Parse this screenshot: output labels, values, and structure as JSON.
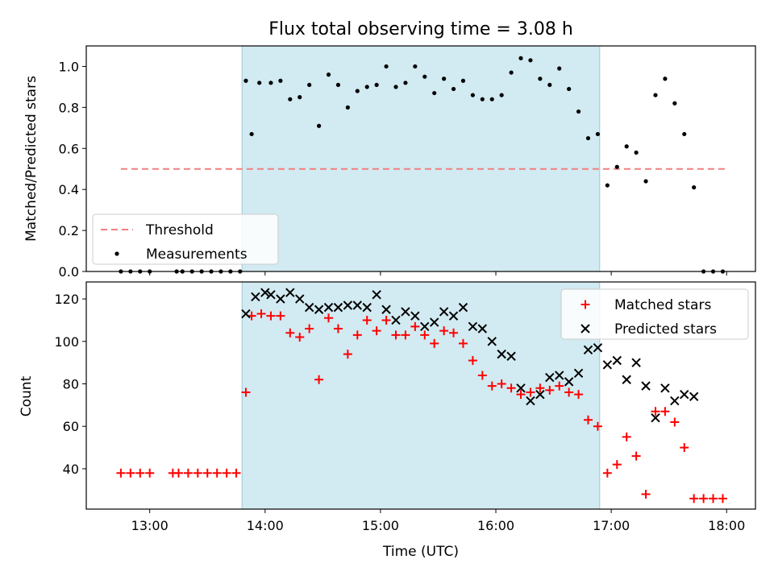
{
  "chart_data": [
    {
      "type": "scatter",
      "title": "Flux total observing time = 3.08 h",
      "xlabel": "",
      "ylabel": "Matched/Predicted stars",
      "xlim": [
        "12:27",
        "18:15"
      ],
      "ylim": [
        0,
        1.1
      ],
      "yticks": [
        "0.0",
        "0.2",
        "0.4",
        "0.6",
        "0.8",
        "1.0"
      ],
      "shaded_interval": [
        "13:48",
        "16:54"
      ],
      "shade_color": "#add8e6",
      "threshold": {
        "name": "Threshold",
        "value": 0.5,
        "from": "12:45",
        "to": "18:00",
        "color": "#f08080"
      },
      "legend": {
        "placement": "lower-left",
        "entries": [
          "Threshold",
          "Measurements"
        ]
      },
      "series": [
        {
          "name": "Measurements",
          "color": "#000000",
          "marker": "dot",
          "x": [
            "12:45",
            "12:50",
            "12:55",
            "13:00",
            "13:14",
            "13:17",
            "13:22",
            "13:27",
            "13:32",
            "13:37",
            "13:42",
            "13:47",
            "13:53",
            "13:50",
            "13:57",
            "14:03",
            "14:08",
            "14:13",
            "14:18",
            "14:23",
            "14:28",
            "14:33",
            "14:38",
            "14:43",
            "14:48",
            "14:53",
            "14:58",
            "15:03",
            "15:08",
            "15:13",
            "15:18",
            "15:23",
            "15:28",
            "15:33",
            "15:38",
            "15:43",
            "15:48",
            "15:53",
            "15:58",
            "16:03",
            "16:08",
            "16:13",
            "16:18",
            "16:23",
            "16:28",
            "16:33",
            "16:38",
            "16:43",
            "16:48",
            "16:53",
            "16:58",
            "17:03",
            "17:08",
            "17:13",
            "17:18",
            "17:23",
            "17:28",
            "17:33",
            "17:38",
            "17:43",
            "17:48",
            "17:53",
            "17:58"
          ],
          "y": [
            0,
            0,
            0,
            0,
            0,
            0,
            0,
            0,
            0,
            0,
            0,
            0,
            0.67,
            0.93,
            0.92,
            0.92,
            0.93,
            0.84,
            0.85,
            0.91,
            0.71,
            0.96,
            0.91,
            0.8,
            0.88,
            0.9,
            0.91,
            1.0,
            0.9,
            0.92,
            1.0,
            0.95,
            0.87,
            0.94,
            0.89,
            0.93,
            0.86,
            0.84,
            0.84,
            0.86,
            0.97,
            1.04,
            1.03,
            0.94,
            0.91,
            0.99,
            0.89,
            0.78,
            0.65,
            0.67,
            0.42,
            0.51,
            0.61,
            0.58,
            0.44,
            0.86,
            0.94,
            0.82,
            0.67,
            0.41,
            0,
            0,
            0
          ]
        }
      ]
    },
    {
      "type": "scatter",
      "title": "",
      "xlabel": "Time (UTC)",
      "ylabel": "Count",
      "xlim": [
        "12:27",
        "18:15"
      ],
      "ylim": [
        21,
        128
      ],
      "xticks": [
        "13:00",
        "14:00",
        "15:00",
        "16:00",
        "17:00",
        "18:00"
      ],
      "yticks": [
        "40",
        "60",
        "80",
        "100",
        "120"
      ],
      "shaded_interval": [
        "13:48",
        "16:54"
      ],
      "legend": {
        "placement": "upper-right",
        "entries": [
          "Matched stars",
          "Predicted stars"
        ]
      },
      "series": [
        {
          "name": "Matched stars",
          "color": "#ff0000",
          "marker": "plus",
          "x": [
            "12:45",
            "12:50",
            "12:55",
            "13:00",
            "13:12",
            "13:15",
            "13:20",
            "13:25",
            "13:30",
            "13:35",
            "13:40",
            "13:45",
            "13:50",
            "13:53",
            "13:58",
            "14:03",
            "14:08",
            "14:13",
            "14:18",
            "14:23",
            "14:28",
            "14:33",
            "14:38",
            "14:43",
            "14:48",
            "14:53",
            "14:58",
            "15:03",
            "15:08",
            "15:13",
            "15:18",
            "15:23",
            "15:28",
            "15:33",
            "15:38",
            "15:43",
            "15:48",
            "15:53",
            "15:58",
            "16:03",
            "16:08",
            "16:13",
            "16:18",
            "16:23",
            "16:28",
            "16:33",
            "16:38",
            "16:43",
            "16:48",
            "16:53",
            "16:58",
            "17:03",
            "17:08",
            "17:13",
            "17:18",
            "17:23",
            "17:28",
            "17:33",
            "17:38",
            "17:43",
            "17:48",
            "17:53",
            "17:58"
          ],
          "y": [
            38,
            38,
            38,
            38,
            38,
            38,
            38,
            38,
            38,
            38,
            38,
            38,
            76,
            112,
            113,
            112,
            112,
            104,
            102,
            106,
            82,
            111,
            106,
            94,
            103,
            110,
            105,
            110,
            103,
            103,
            107,
            103,
            99,
            105,
            104,
            99,
            91,
            84,
            79,
            80,
            78,
            75,
            76,
            78,
            77,
            79,
            76,
            75,
            63,
            60,
            38,
            42,
            55,
            46,
            28,
            67,
            67,
            62,
            50,
            26,
            26,
            26,
            26
          ]
        },
        {
          "name": "Predicted stars",
          "color": "#000000",
          "marker": "x",
          "x": [
            "13:50",
            "13:55",
            "14:00",
            "14:03",
            "14:08",
            "14:13",
            "14:18",
            "14:23",
            "14:28",
            "14:33",
            "14:38",
            "14:43",
            "14:48",
            "14:53",
            "14:58",
            "15:03",
            "15:08",
            "15:13",
            "15:18",
            "15:23",
            "15:28",
            "15:33",
            "15:38",
            "15:43",
            "15:48",
            "15:53",
            "15:58",
            "16:03",
            "16:08",
            "16:13",
            "16:18",
            "16:23",
            "16:28",
            "16:33",
            "16:38",
            "16:43",
            "16:48",
            "16:53",
            "16:58",
            "17:03",
            "17:08",
            "17:13",
            "17:18",
            "17:23",
            "17:28",
            "17:33",
            "17:38",
            "17:43"
          ],
          "y": [
            113,
            121,
            123,
            122,
            120,
            123,
            120,
            116,
            115,
            116,
            116,
            117,
            117,
            116,
            122,
            115,
            110,
            114,
            112,
            107,
            109,
            114,
            112,
            116,
            107,
            106,
            100,
            94,
            93,
            78,
            72,
            75,
            83,
            84,
            81,
            85,
            96,
            97,
            89,
            91,
            82,
            90,
            79,
            64,
            78,
            72,
            75,
            74
          ]
        }
      ]
    }
  ]
}
